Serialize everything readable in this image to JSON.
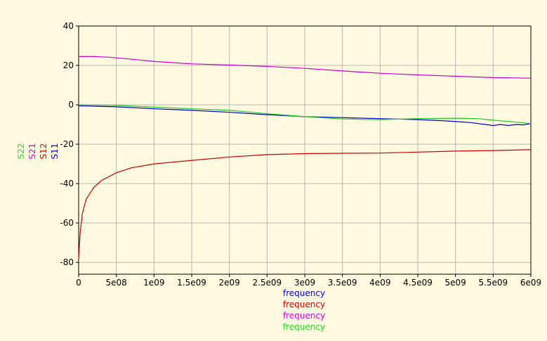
{
  "chart_data": {
    "type": "line",
    "xlim": [
      0,
      6000000000
    ],
    "ylim": [
      -86,
      40
    ],
    "x_ticks": [
      0,
      500000000,
      1000000000,
      1500000000,
      2000000000,
      2500000000,
      3000000000,
      3500000000,
      4000000000,
      4500000000,
      5000000000,
      5500000000,
      6000000000
    ],
    "x_tick_labels": [
      "0",
      "5e08",
      "1e09",
      "1.5e09",
      "2e09",
      "2.5e09",
      "3e09",
      "3.5e09",
      "4e09",
      "4.5e09",
      "5e09",
      "5.5e09",
      "6e09"
    ],
    "y_ticks": [
      40,
      20,
      0,
      -20,
      -40,
      -60,
      -80
    ],
    "y_tick_labels": [
      "40",
      "20",
      "0",
      "-20",
      "-40",
      "-60",
      "-80"
    ],
    "grid": true,
    "xlabels": [
      {
        "text": "frequency",
        "color": "#0000dd"
      },
      {
        "text": "frequency",
        "color": "#dd0000"
      },
      {
        "text": "frequency",
        "color": "#dd00dd"
      },
      {
        "text": "frequency",
        "color": "#22dd22"
      }
    ],
    "ylabels": [
      {
        "text": "S22",
        "color": "#22dd22"
      },
      {
        "text": "S21",
        "color": "#dd00dd"
      },
      {
        "text": "S12",
        "color": "#dd0000"
      },
      {
        "text": "S11",
        "color": "#0000dd"
      }
    ],
    "series": [
      {
        "name": "S11",
        "color": "#0000cc",
        "x": [
          0,
          500000000,
          1000000000,
          1500000000,
          2000000000,
          2500000000,
          3000000000,
          3500000000,
          4000000000,
          4500000000,
          4800000000,
          5000000000,
          5200000000,
          5300000000,
          5400000000,
          5500000000,
          5600000000,
          5700000000,
          5800000000,
          5900000000,
          6000000000
        ],
        "y": [
          -0.5,
          -1,
          -2,
          -2.8,
          -3.8,
          -5,
          -6,
          -6.5,
          -7,
          -7.5,
          -8,
          -8.5,
          -9,
          -9.5,
          -10,
          -10.5,
          -10,
          -10.5,
          -10,
          -10.2,
          -9.5
        ]
      },
      {
        "name": "S12",
        "color": "#cc0000",
        "x": [
          0,
          20000000,
          50000000,
          100000000,
          200000000,
          300000000,
          500000000,
          700000000,
          1000000000,
          1500000000,
          2000000000,
          2500000000,
          3000000000,
          3500000000,
          4000000000,
          4500000000,
          5000000000,
          5500000000,
          6000000000
        ],
        "y": [
          -78,
          -65,
          -55,
          -48,
          -42,
          -38.5,
          -34.5,
          -32,
          -30,
          -28.2,
          -26.5,
          -25.3,
          -24.8,
          -24.6,
          -24.5,
          -24,
          -23.5,
          -23.2,
          -22.8
        ]
      },
      {
        "name": "S21",
        "color": "#cc00cc",
        "x": [
          0,
          200000000,
          400000000,
          600000000,
          1000000000,
          1500000000,
          2000000000,
          2500000000,
          3000000000,
          3500000000,
          4000000000,
          4500000000,
          5000000000,
          5500000000,
          6000000000
        ],
        "y": [
          24.5,
          24.5,
          24.2,
          23.5,
          22,
          20.8,
          20.2,
          19.5,
          18.5,
          17.2,
          16,
          15.2,
          14.5,
          13.8,
          13.5
        ]
      },
      {
        "name": "S22",
        "color": "#22cc22",
        "x": [
          0,
          500000000,
          1000000000,
          1500000000,
          2000000000,
          2500000000,
          3000000000,
          3500000000,
          4000000000,
          4500000000,
          5000000000,
          5300000000,
          5500000000,
          5800000000,
          6000000000
        ],
        "y": [
          0,
          -0.3,
          -1.2,
          -2,
          -2.8,
          -4.5,
          -6,
          -7.2,
          -7.5,
          -7,
          -6.8,
          -7,
          -7.8,
          -8.8,
          -9.5
        ]
      }
    ]
  }
}
